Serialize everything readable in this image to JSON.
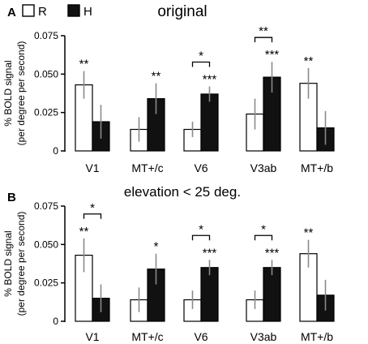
{
  "chart_data": [
    {
      "type": "bar",
      "panel_letter": "A",
      "title": "original",
      "ylabel_line1": "% BOLD signal",
      "ylabel_line2": "(per degree per second)",
      "ylim": [
        0,
        0.075
      ],
      "yticks": [
        0,
        0.025,
        0.05,
        0.075
      ],
      "ytick_labels": [
        "0",
        "0.025",
        "0.050",
        "0.075"
      ],
      "categories": [
        "V1",
        "MT+/c",
        "V6",
        "V3ab",
        "MT+/b"
      ],
      "series": [
        {
          "name": "R",
          "color": "#ffffff",
          "values": [
            0.043,
            0.014,
            0.014,
            0.024,
            0.044
          ],
          "errors": [
            0.009,
            0.008,
            0.005,
            0.01,
            0.01
          ]
        },
        {
          "name": "H",
          "color": "#111111",
          "values": [
            0.019,
            0.034,
            0.037,
            0.048,
            0.015
          ],
          "errors": [
            0.011,
            0.01,
            0.005,
            0.01,
            0.011
          ]
        }
      ],
      "significance": [
        {
          "category": 0,
          "series": 0,
          "label": "**"
        },
        {
          "category": 1,
          "series": 1,
          "label": "**"
        },
        {
          "category": 2,
          "series": 1,
          "label": "***"
        },
        {
          "category": 3,
          "series": 1,
          "label": "***"
        },
        {
          "category": 4,
          "series": 0,
          "label": "**"
        }
      ],
      "brackets": [
        {
          "category": 2,
          "label": "*"
        },
        {
          "category": 3,
          "label": "**"
        }
      ],
      "legend": true
    },
    {
      "type": "bar",
      "panel_letter": "B",
      "title": "elevation < 25 deg.",
      "ylabel_line1": "% BOLD signal",
      "ylabel_line2": "(per degree per second)",
      "ylim": [
        0,
        0.075
      ],
      "yticks": [
        0,
        0.025,
        0.05,
        0.075
      ],
      "ytick_labels": [
        "0",
        "0.025",
        "0.050",
        "0.075"
      ],
      "categories": [
        "V1",
        "MT+/c",
        "V6",
        "V3ab",
        "MT+/b"
      ],
      "series": [
        {
          "name": "R",
          "color": "#ffffff",
          "values": [
            0.043,
            0.014,
            0.014,
            0.014,
            0.044
          ],
          "errors": [
            0.011,
            0.008,
            0.006,
            0.006,
            0.009
          ]
        },
        {
          "name": "H",
          "color": "#111111",
          "values": [
            0.015,
            0.034,
            0.035,
            0.035,
            0.017
          ],
          "errors": [
            0.009,
            0.01,
            0.005,
            0.005,
            0.01
          ]
        }
      ],
      "significance": [
        {
          "category": 0,
          "series": 0,
          "label": "**"
        },
        {
          "category": 1,
          "series": 1,
          "label": "*"
        },
        {
          "category": 2,
          "series": 1,
          "label": "***"
        },
        {
          "category": 3,
          "series": 1,
          "label": "***"
        },
        {
          "category": 4,
          "series": 0,
          "label": "**"
        }
      ],
      "brackets": [
        {
          "category": 0,
          "label": "*"
        },
        {
          "category": 2,
          "label": "*"
        },
        {
          "category": 3,
          "label": "*"
        }
      ],
      "legend": false
    }
  ]
}
